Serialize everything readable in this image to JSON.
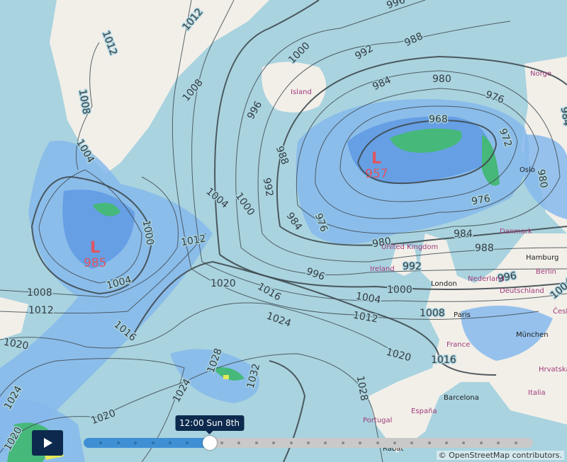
{
  "colors": {
    "ocean": "#a9d3df",
    "land": "#f2efe9",
    "rain_light": "#86b9ec",
    "rain_mid": "#5d97e2",
    "rain_heavy": "#46b87a",
    "isobar": "#3f4a50",
    "low": "#e0555f",
    "control": "#0d2a4e",
    "progress": "#3f8fd4"
  },
  "lows": [
    {
      "letter": "L",
      "value": "985"
    },
    {
      "letter": "L",
      "value": "957"
    }
  ],
  "isobar_labels": [
    "1012",
    "1012",
    "1008",
    "1008",
    "1004",
    "1000",
    "996",
    "992",
    "988",
    "984",
    "980",
    "976",
    "968",
    "972",
    "988",
    "992",
    "1004",
    "1000",
    "984",
    "976",
    "976",
    "984",
    "980",
    "988",
    "992",
    "996",
    "996",
    "1000",
    "1004",
    "1004",
    "1008",
    "1012",
    "1016",
    "1020",
    "1024",
    "1012",
    "1000",
    "1004",
    "1008",
    "1012",
    "1016",
    "1020",
    "1020",
    "1016",
    "1028",
    "1032",
    "1028",
    "1024",
    "1020",
    "1024",
    "1020",
    "984",
    "980",
    "996"
  ],
  "places": [
    "Island",
    "Norge",
    "Oslo",
    "Danmark",
    "United Kingdom",
    "Ireland",
    "Hamburg",
    "Berlin",
    "London",
    "Nederland",
    "Deutschland",
    "Paris",
    "France",
    "München",
    "Česk",
    "Hrvatska",
    "Italia",
    "Barcelona",
    "España",
    "Portugal",
    "Rabat"
  ],
  "timeline": {
    "play_icon": "play-icon",
    "current_time": "12:00 Sun 8th",
    "progress_fraction": 0.28,
    "steps": 26
  },
  "attribution": "© OpenStreetMap contributors."
}
